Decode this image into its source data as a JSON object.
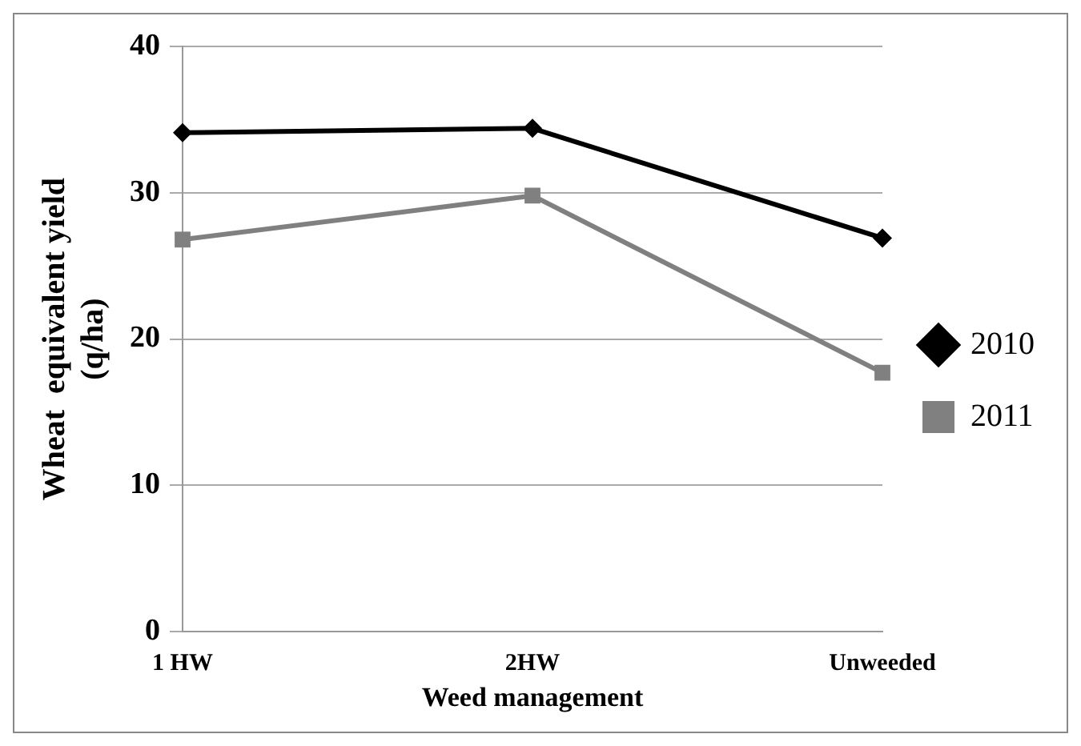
{
  "chart_data": {
    "type": "line",
    "xlabel": "Weed management",
    "ylabel": "Wheat  equivalent yield (q/ha)",
    "categories": [
      "1 HW",
      "2HW",
      "Unweeded"
    ],
    "series": [
      {
        "name": "2010",
        "color": "#000000",
        "marker": "diamond",
        "values": [
          34.1,
          34.4,
          26.9
        ]
      },
      {
        "name": "2011",
        "color": "#808080",
        "marker": "square",
        "values": [
          26.8,
          29.8,
          17.7
        ]
      }
    ],
    "ylim": [
      0,
      40
    ],
    "yticks": [
      0,
      10,
      20,
      30,
      40
    ],
    "grid": "y",
    "legend": "right"
  }
}
